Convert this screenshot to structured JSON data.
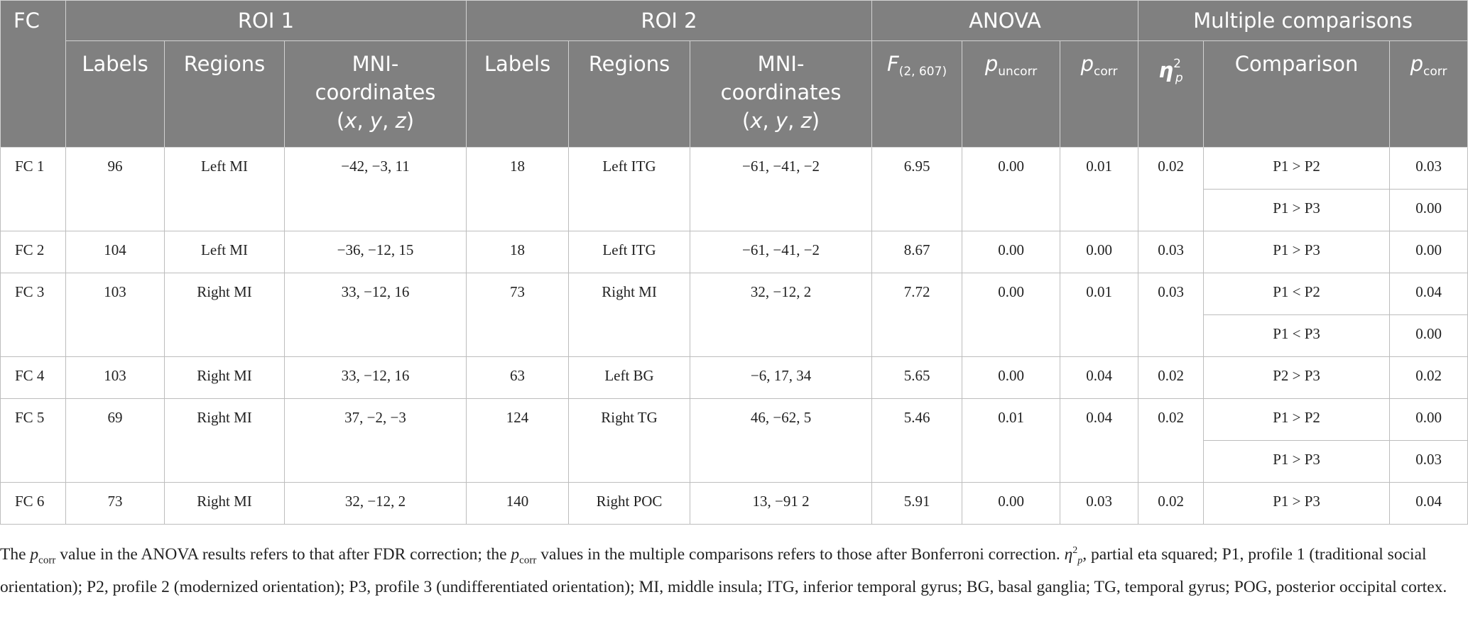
{
  "header": {
    "fc": "FC",
    "roi1": "ROI 1",
    "roi2": "ROI 2",
    "anova": "ANOVA",
    "multiple_comparisons": "Multiple comparisons",
    "labels": "Labels",
    "regions": "Regions",
    "mni_line1": "MNI-",
    "mni_line2": "coordinates",
    "mni_x": "x",
    "mni_y": "y",
    "mni_z": "z",
    "f_stat": "F",
    "f_df": "(2, 607)",
    "p": "p",
    "uncorr": "uncorr",
    "corr": "corr",
    "eta": "η",
    "eta_sup": "2",
    "eta_sub": "p",
    "comparison": "Comparison"
  },
  "rows": [
    {
      "fc": "FC 1",
      "label1": "96",
      "region1": "Left MI",
      "mni1": "−42, −3, 11",
      "label2": "18",
      "region2": "Left ITG",
      "mni2": "−61, −41, −2",
      "f": "6.95",
      "p_uncorr": "0.00",
      "p_corr": "0.01",
      "eta2p": "0.02",
      "comparisons": [
        {
          "comparison": "P1 > P2",
          "p_corr": "0.03"
        },
        {
          "comparison": "P1 > P3",
          "p_corr": "0.00"
        }
      ]
    },
    {
      "fc": "FC 2",
      "label1": "104",
      "region1": "Left MI",
      "mni1": "−36, −12, 15",
      "label2": "18",
      "region2": "Left ITG",
      "mni2": "−61, −41, −2",
      "f": "8.67",
      "p_uncorr": "0.00",
      "p_corr": "0.00",
      "eta2p": "0.03",
      "comparisons": [
        {
          "comparison": "P1 > P3",
          "p_corr": "0.00"
        }
      ]
    },
    {
      "fc": "FC 3",
      "label1": "103",
      "region1": "Right MI",
      "mni1": "33, −12, 16",
      "label2": "73",
      "region2": "Right MI",
      "mni2": "32, −12, 2",
      "f": "7.72",
      "p_uncorr": "0.00",
      "p_corr": "0.01",
      "eta2p": "0.03",
      "comparisons": [
        {
          "comparison": "P1 < P2",
          "p_corr": "0.04"
        },
        {
          "comparison": "P1 < P3",
          "p_corr": "0.00"
        }
      ]
    },
    {
      "fc": "FC 4",
      "label1": "103",
      "region1": "Right MI",
      "mni1": "33, −12, 16",
      "label2": "63",
      "region2": "Left BG",
      "mni2": "−6, 17, 34",
      "f": "5.65",
      "p_uncorr": "0.00",
      "p_corr": "0.04",
      "eta2p": "0.02",
      "comparisons": [
        {
          "comparison": "P2 > P3",
          "p_corr": "0.02"
        }
      ]
    },
    {
      "fc": "FC 5",
      "label1": "69",
      "region1": "Right MI",
      "mni1": "37, −2, −3",
      "label2": "124",
      "region2": "Right TG",
      "mni2": "46, −62, 5",
      "f": "5.46",
      "p_uncorr": "0.01",
      "p_corr": "0.04",
      "eta2p": "0.02",
      "comparisons": [
        {
          "comparison": "P1 > P2",
          "p_corr": "0.00"
        },
        {
          "comparison": "P1 > P3",
          "p_corr": "0.03"
        }
      ]
    },
    {
      "fc": "FC 6",
      "label1": "73",
      "region1": "Right MI",
      "mni1": "32, −12, 2",
      "label2": "140",
      "region2": "Right POC",
      "mni2": "13, −91 2",
      "f": "5.91",
      "p_uncorr": "0.00",
      "p_corr": "0.03",
      "eta2p": "0.02",
      "comparisons": [
        {
          "comparison": "P1 > P3",
          "p_corr": "0.04"
        }
      ]
    }
  ],
  "footnote": {
    "p": "p",
    "corr": "corr",
    "part1": " value in the ANOVA results refers to that after FDR correction; the ",
    "part2": " values in the multiple comparisons refers to those after Bonferroni correction. ",
    "eta": "η",
    "eta_sup": "2",
    "eta_sub": "p",
    "part3": ", partial eta squared; P1, profile 1 (traditional social orientation); P2, profile 2 (modernized orientation); P3, profile 3 (undifferentiated orientation); MI, middle insula; ITG, inferior temporal gyrus; BG, basal ganglia; TG, temporal gyrus; POG, posterior occipital cortex."
  }
}
